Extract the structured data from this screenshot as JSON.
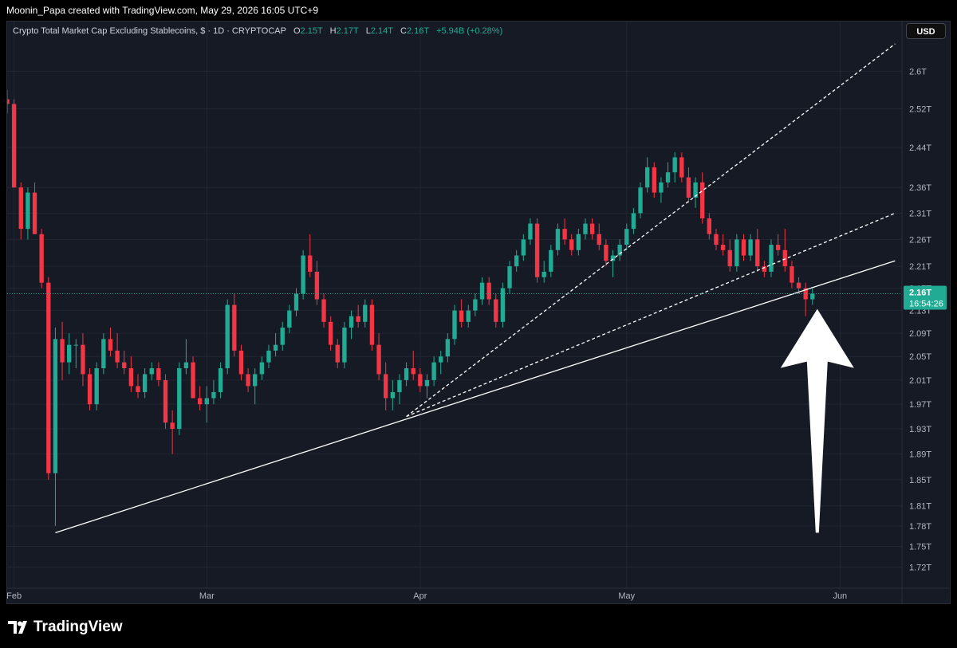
{
  "header": {
    "caption": "Moonin_Papa created with TradingView.com, May 29, 2026 16:05 UTC+9"
  },
  "legend": {
    "symbol": "Crypto Total Market Cap Excluding Stablecoins, $ · 1D · CRYPTOCAP",
    "o_label": "O",
    "o_value": "2.15T",
    "h_label": "H",
    "h_value": "2.17T",
    "l_label": "L",
    "l_value": "2.14T",
    "c_label": "C",
    "c_value": "2.16T",
    "change": "+5.94B (+0.28%)"
  },
  "currency_button": "USD",
  "last_price": {
    "value": "2.16T",
    "countdown": "16:54:26",
    "numeric": 2.16
  },
  "branding": "TradingView",
  "colors": {
    "background": "#161a25",
    "up_candle": "#22ab94",
    "down_candle": "#f23645",
    "trendline": "#ffffff",
    "grid": "#222632",
    "axis_text": "#b2b5be"
  },
  "chart_data": {
    "type": "candlestick",
    "yscale": "log",
    "ylim": [
      1.69,
      2.71
    ],
    "y_ticks": [
      {
        "v": 1.72,
        "label": "1.72T"
      },
      {
        "v": 1.75,
        "label": "1.75T"
      },
      {
        "v": 1.78,
        "label": "1.78T"
      },
      {
        "v": 1.81,
        "label": "1.81T"
      },
      {
        "v": 1.85,
        "label": "1.85T"
      },
      {
        "v": 1.89,
        "label": "1.89T"
      },
      {
        "v": 1.93,
        "label": "1.93T"
      },
      {
        "v": 1.97,
        "label": "1.97T"
      },
      {
        "v": 2.01,
        "label": "2.01T"
      },
      {
        "v": 2.05,
        "label": "2.05T"
      },
      {
        "v": 2.09,
        "label": "2.09T"
      },
      {
        "v": 2.13,
        "label": "2.13T"
      },
      {
        "v": 2.17,
        "label": "2.17T"
      },
      {
        "v": 2.21,
        "label": "2.21T"
      },
      {
        "v": 2.26,
        "label": "2.26T"
      },
      {
        "v": 2.31,
        "label": "2.31T"
      },
      {
        "v": 2.36,
        "label": "2.36T"
      },
      {
        "v": 2.44,
        "label": "2.44T"
      },
      {
        "v": 2.52,
        "label": "2.52T"
      },
      {
        "v": 2.6,
        "label": "2.6T"
      }
    ],
    "x_start": "2026-01-31",
    "x_end": "2026-06-10",
    "x_ticks": [
      {
        "date": "2026-02-01",
        "label": "Feb"
      },
      {
        "date": "2026-03-01",
        "label": "Mar"
      },
      {
        "date": "2026-04-01",
        "label": "Apr"
      },
      {
        "date": "2026-05-01",
        "label": "May"
      },
      {
        "date": "2026-06-01",
        "label": "Jun"
      }
    ],
    "candles_start": "2026-01-31",
    "candles": [
      [
        2.54,
        2.56,
        2.51,
        2.53
      ],
      [
        2.53,
        2.54,
        2.36,
        2.36
      ],
      [
        2.36,
        2.37,
        2.26,
        2.28
      ],
      [
        2.28,
        2.36,
        2.26,
        2.35
      ],
      [
        2.35,
        2.37,
        2.27,
        2.27
      ],
      [
        2.27,
        2.28,
        2.17,
        2.18
      ],
      [
        2.18,
        2.19,
        1.85,
        1.86
      ],
      [
        1.86,
        2.1,
        1.78,
        2.08
      ],
      [
        2.08,
        2.11,
        2.01,
        2.04
      ],
      [
        2.04,
        2.09,
        2.02,
        2.07
      ],
      [
        2.07,
        2.08,
        2.03,
        2.07
      ],
      [
        2.07,
        2.09,
        2.0,
        2.02
      ],
      [
        2.02,
        2.03,
        1.96,
        1.97
      ],
      [
        1.97,
        2.04,
        1.96,
        2.03
      ],
      [
        2.03,
        2.09,
        2.02,
        2.08
      ],
      [
        2.08,
        2.1,
        2.05,
        2.06
      ],
      [
        2.06,
        2.09,
        2.03,
        2.04
      ],
      [
        2.04,
        2.06,
        2.02,
        2.03
      ],
      [
        2.03,
        2.05,
        1.99,
        2.0
      ],
      [
        2.0,
        2.02,
        1.98,
        1.99
      ],
      [
        1.99,
        2.03,
        1.98,
        2.02
      ],
      [
        2.02,
        2.04,
        2.01,
        2.03
      ],
      [
        2.03,
        2.04,
        2.0,
        2.01
      ],
      [
        2.01,
        2.02,
        1.93,
        1.94
      ],
      [
        1.94,
        1.96,
        1.89,
        1.93
      ],
      [
        1.93,
        2.04,
        1.92,
        2.03
      ],
      [
        2.03,
        2.08,
        2.02,
        2.04
      ],
      [
        2.04,
        2.05,
        1.98,
        1.98
      ],
      [
        1.98,
        2.0,
        1.96,
        1.97
      ],
      [
        1.97,
        2.0,
        1.94,
        1.98
      ],
      [
        1.98,
        2.01,
        1.97,
        1.99
      ],
      [
        1.99,
        2.04,
        1.98,
        2.03
      ],
      [
        2.03,
        2.15,
        2.02,
        2.14
      ],
      [
        2.14,
        2.16,
        2.05,
        2.06
      ],
      [
        2.06,
        2.07,
        2.01,
        2.02
      ],
      [
        2.02,
        2.03,
        1.99,
        2.0
      ],
      [
        2.0,
        2.03,
        1.97,
        2.02
      ],
      [
        2.02,
        2.05,
        2.01,
        2.04
      ],
      [
        2.04,
        2.07,
        2.03,
        2.06
      ],
      [
        2.06,
        2.09,
        2.05,
        2.07
      ],
      [
        2.07,
        2.11,
        2.06,
        2.1
      ],
      [
        2.1,
        2.14,
        2.09,
        2.13
      ],
      [
        2.13,
        2.17,
        2.12,
        2.16
      ],
      [
        2.16,
        2.24,
        2.15,
        2.23
      ],
      [
        2.23,
        2.27,
        2.19,
        2.2
      ],
      [
        2.2,
        2.22,
        2.14,
        2.15
      ],
      [
        2.15,
        2.16,
        2.1,
        2.11
      ],
      [
        2.11,
        2.12,
        2.06,
        2.07
      ],
      [
        2.07,
        2.08,
        2.03,
        2.04
      ],
      [
        2.04,
        2.11,
        2.03,
        2.1
      ],
      [
        2.1,
        2.13,
        2.08,
        2.12
      ],
      [
        2.12,
        2.14,
        2.1,
        2.11
      ],
      [
        2.11,
        2.15,
        2.1,
        2.14
      ],
      [
        2.14,
        2.15,
        2.06,
        2.07
      ],
      [
        2.07,
        2.09,
        2.01,
        2.02
      ],
      [
        2.02,
        2.04,
        1.96,
        1.98
      ],
      [
        1.98,
        2.01,
        1.96,
        1.99
      ],
      [
        1.99,
        2.02,
        1.97,
        2.01
      ],
      [
        2.01,
        2.04,
        2.0,
        2.03
      ],
      [
        2.03,
        2.06,
        2.01,
        2.02
      ],
      [
        2.02,
        2.03,
        1.99,
        2.0
      ],
      [
        2.0,
        2.02,
        1.98,
        2.01
      ],
      [
        2.01,
        2.05,
        2.0,
        2.04
      ],
      [
        2.04,
        2.06,
        2.02,
        2.05
      ],
      [
        2.05,
        2.09,
        2.04,
        2.08
      ],
      [
        2.08,
        2.14,
        2.07,
        2.13
      ],
      [
        2.13,
        2.15,
        2.1,
        2.11
      ],
      [
        2.11,
        2.14,
        2.1,
        2.13
      ],
      [
        2.13,
        2.16,
        2.12,
        2.15
      ],
      [
        2.15,
        2.19,
        2.14,
        2.18
      ],
      [
        2.18,
        2.19,
        2.14,
        2.15
      ],
      [
        2.15,
        2.16,
        2.1,
        2.11
      ],
      [
        2.11,
        2.18,
        2.1,
        2.17
      ],
      [
        2.17,
        2.22,
        2.16,
        2.21
      ],
      [
        2.21,
        2.24,
        2.2,
        2.23
      ],
      [
        2.23,
        2.27,
        2.22,
        2.26
      ],
      [
        2.26,
        2.3,
        2.25,
        2.29
      ],
      [
        2.29,
        2.3,
        2.18,
        2.19
      ],
      [
        2.19,
        2.22,
        2.18,
        2.2
      ],
      [
        2.2,
        2.25,
        2.19,
        2.24
      ],
      [
        2.24,
        2.29,
        2.23,
        2.28
      ],
      [
        2.28,
        2.3,
        2.25,
        2.26
      ],
      [
        2.26,
        2.27,
        2.23,
        2.24
      ],
      [
        2.24,
        2.28,
        2.23,
        2.27
      ],
      [
        2.27,
        2.3,
        2.26,
        2.29
      ],
      [
        2.29,
        2.3,
        2.26,
        2.27
      ],
      [
        2.27,
        2.29,
        2.24,
        2.25
      ],
      [
        2.25,
        2.26,
        2.21,
        2.22
      ],
      [
        2.22,
        2.24,
        2.19,
        2.23
      ],
      [
        2.23,
        2.26,
        2.22,
        2.25
      ],
      [
        2.25,
        2.29,
        2.24,
        2.28
      ],
      [
        2.28,
        2.32,
        2.27,
        2.31
      ],
      [
        2.31,
        2.37,
        2.3,
        2.36
      ],
      [
        2.36,
        2.42,
        2.35,
        2.4
      ],
      [
        2.4,
        2.41,
        2.34,
        2.35
      ],
      [
        2.35,
        2.38,
        2.33,
        2.37
      ],
      [
        2.37,
        2.41,
        2.36,
        2.39
      ],
      [
        2.39,
        2.43,
        2.37,
        2.42
      ],
      [
        2.42,
        2.43,
        2.37,
        2.38
      ],
      [
        2.38,
        2.4,
        2.33,
        2.34
      ],
      [
        2.34,
        2.38,
        2.32,
        2.37
      ],
      [
        2.37,
        2.39,
        2.29,
        2.3
      ],
      [
        2.3,
        2.31,
        2.26,
        2.27
      ],
      [
        2.27,
        2.28,
        2.24,
        2.25
      ],
      [
        2.25,
        2.27,
        2.23,
        2.24
      ],
      [
        2.24,
        2.26,
        2.2,
        2.21
      ],
      [
        2.21,
        2.27,
        2.2,
        2.26
      ],
      [
        2.26,
        2.27,
        2.22,
        2.23
      ],
      [
        2.23,
        2.27,
        2.22,
        2.26
      ],
      [
        2.26,
        2.28,
        2.2,
        2.21
      ],
      [
        2.21,
        2.22,
        2.19,
        2.2
      ],
      [
        2.2,
        2.26,
        2.19,
        2.25
      ],
      [
        2.25,
        2.27,
        2.23,
        2.24
      ],
      [
        2.24,
        2.28,
        2.2,
        2.21
      ],
      [
        2.21,
        2.22,
        2.17,
        2.18
      ],
      [
        2.18,
        2.19,
        2.16,
        2.17
      ],
      [
        2.17,
        2.18,
        2.12,
        2.15
      ],
      [
        2.15,
        2.17,
        2.14,
        2.16
      ]
    ],
    "trendlines": [
      {
        "style": "solid",
        "from": [
          "2026-02-07",
          1.77
        ],
        "to": [
          "2026-06-09",
          2.22
        ]
      },
      {
        "style": "dashed",
        "from": [
          "2026-03-30",
          1.95
        ],
        "to": [
          "2026-06-09",
          2.31
        ]
      },
      {
        "style": "dashed",
        "from": [
          "2026-03-30",
          1.95
        ],
        "to": [
          "2026-06-09",
          2.66
        ]
      }
    ],
    "annotations": [
      {
        "type": "arrow",
        "direction": "up",
        "color": "#ffffff",
        "tip": [
          "2026-05-28",
          2.13
        ],
        "tail": [
          "2026-05-28",
          1.77
        ]
      }
    ]
  }
}
